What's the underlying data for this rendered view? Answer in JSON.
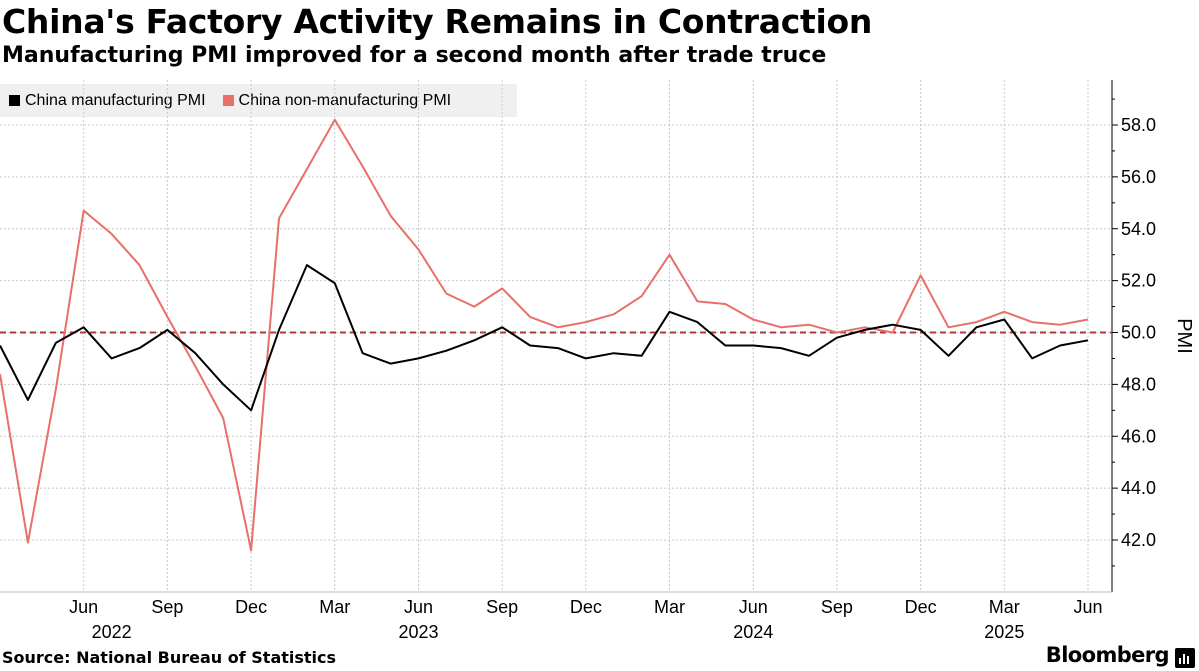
{
  "header": {
    "title": "China's Factory Activity Remains in Contraction",
    "subtitle": "Manufacturing PMI improved for a second month after trade truce"
  },
  "footer": {
    "source": "Source: National Bureau of Statistics",
    "brand": "Bloomberg",
    "brand_icon": "bloomberg-terminal-icon"
  },
  "colors": {
    "manufacturing": "#000000",
    "non_manufacturing": "#e8706b",
    "reference_line": "#b03a3a",
    "grid": "#c8c8c8"
  },
  "chart_data": {
    "type": "line",
    "title": "China's Factory Activity Remains in Contraction",
    "ylabel": "PMI",
    "ylim": [
      40.0,
      59.8
    ],
    "yticks": [
      42.0,
      44.0,
      46.0,
      48.0,
      50.0,
      52.0,
      54.0,
      56.0,
      58.0
    ],
    "ytick_labels": [
      "42.0",
      "44.0",
      "46.0",
      "48.0",
      "50.0",
      "52.0",
      "54.0",
      "56.0",
      "58.0"
    ],
    "reference_line": 50.0,
    "grid": true,
    "legend_position": "top-left",
    "x_tick_labels": [
      "Jun",
      "Sep",
      "Dec",
      "Mar",
      "Jun",
      "Sep",
      "Dec",
      "Mar",
      "Jun",
      "Sep",
      "Dec",
      "Mar",
      "Jun"
    ],
    "x_tick_dates": [
      "2022-06",
      "2022-09",
      "2022-12",
      "2023-03",
      "2023-06",
      "2023-09",
      "2023-12",
      "2024-03",
      "2024-06",
      "2024-09",
      "2024-12",
      "2025-03",
      "2025-06"
    ],
    "year_labels": [
      {
        "label": "2022",
        "date": "2022-07"
      },
      {
        "label": "2023",
        "date": "2023-06"
      },
      {
        "label": "2024",
        "date": "2024-06"
      },
      {
        "label": "2025",
        "date": "2025-03"
      }
    ],
    "x": [
      "2022-03",
      "2022-04",
      "2022-05",
      "2022-06",
      "2022-07",
      "2022-08",
      "2022-09",
      "2022-10",
      "2022-11",
      "2022-12",
      "2023-01",
      "2023-02",
      "2023-03",
      "2023-04",
      "2023-05",
      "2023-06",
      "2023-07",
      "2023-08",
      "2023-09",
      "2023-10",
      "2023-11",
      "2023-12",
      "2024-01",
      "2024-02",
      "2024-03",
      "2024-04",
      "2024-05",
      "2024-06",
      "2024-07",
      "2024-08",
      "2024-09",
      "2024-10",
      "2024-11",
      "2024-12",
      "2025-01",
      "2025-02",
      "2025-03",
      "2025-04",
      "2025-05",
      "2025-06"
    ],
    "series": [
      {
        "name": "China manufacturing PMI",
        "color": "#000000",
        "values": [
          49.5,
          47.4,
          49.6,
          50.2,
          49.0,
          49.4,
          50.1,
          49.2,
          48.0,
          47.0,
          50.1,
          52.6,
          51.9,
          49.2,
          48.8,
          49.0,
          49.3,
          49.7,
          50.2,
          49.5,
          49.4,
          49.0,
          49.2,
          49.1,
          50.8,
          50.4,
          49.5,
          49.5,
          49.4,
          49.1,
          49.8,
          50.1,
          50.3,
          50.1,
          49.1,
          50.2,
          50.5,
          49.0,
          49.5,
          49.7
        ]
      },
      {
        "name": "China non-manufacturing PMI",
        "color": "#e8706b",
        "values": [
          48.4,
          41.9,
          47.8,
          54.7,
          53.8,
          52.6,
          50.6,
          48.7,
          46.7,
          41.6,
          54.4,
          56.3,
          58.2,
          56.4,
          54.5,
          53.2,
          51.5,
          51.0,
          51.7,
          50.6,
          50.2,
          50.4,
          50.7,
          51.4,
          53.0,
          51.2,
          51.1,
          50.5,
          50.2,
          50.3,
          50.0,
          50.2,
          50.0,
          52.2,
          50.2,
          50.4,
          50.8,
          50.4,
          50.3,
          50.5
        ]
      }
    ]
  }
}
